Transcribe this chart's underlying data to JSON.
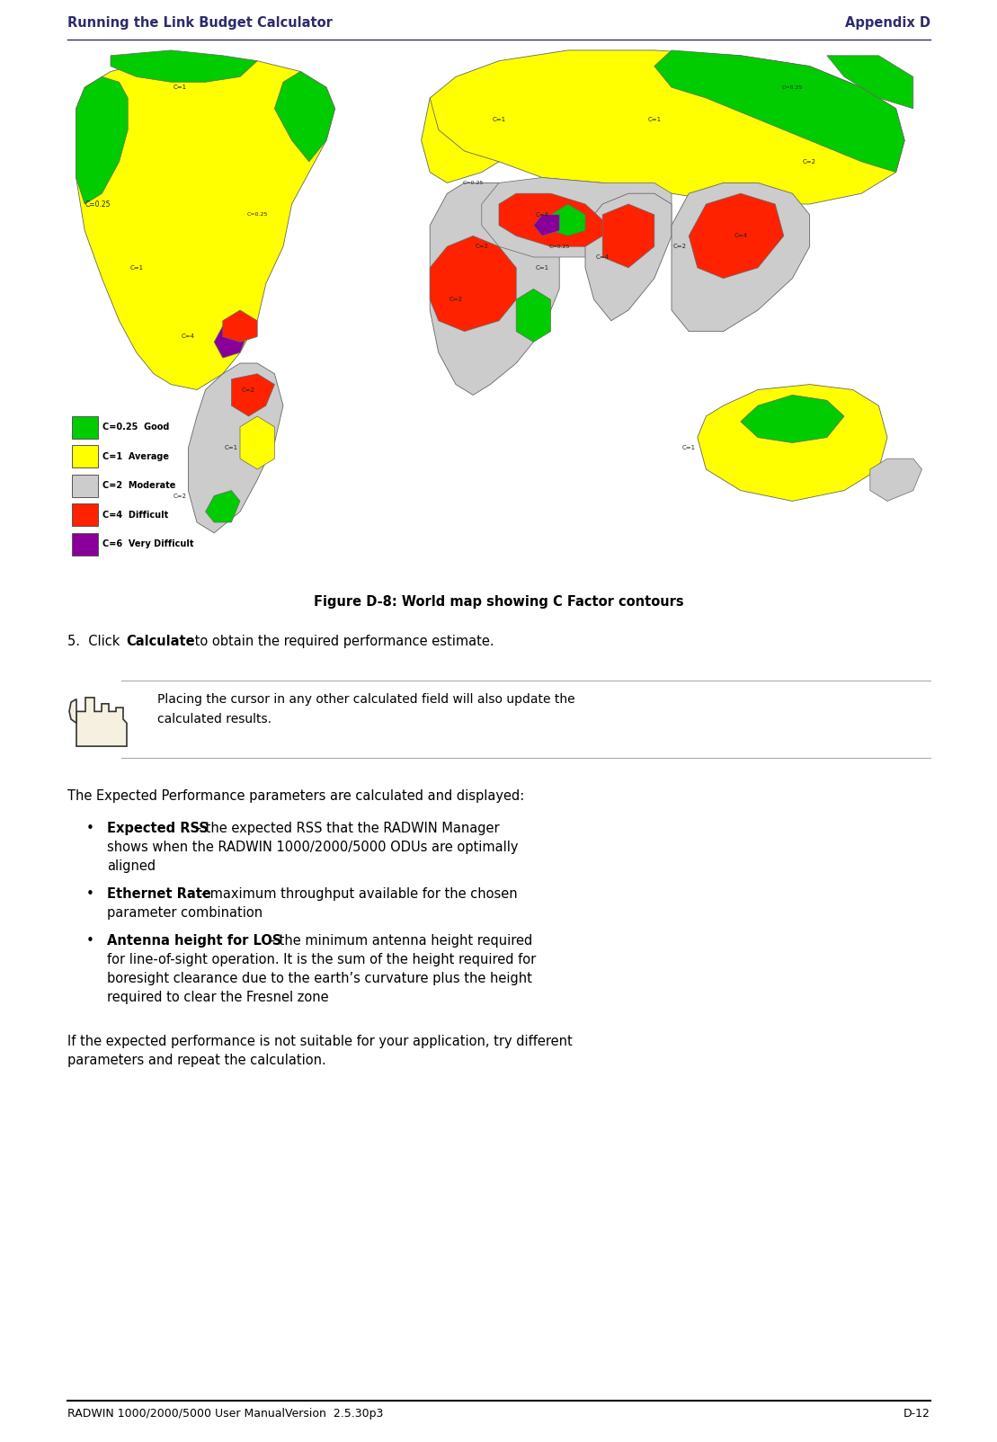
{
  "header_left": "Running the Link Budget Calculator",
  "header_right": "Appendix D",
  "header_color": "#2d2b6b",
  "header_fontsize": 10.5,
  "figure_caption": "Figure D-8: World map showing C Factor contours",
  "step5_pre": "5.  Click ",
  "step5_bold": "Calculate",
  "step5_post": " to obtain the required performance estimate.",
  "note_text_line1": "Placing the cursor in any other calculated field will also update the",
  "note_text_line2": "calculated results.",
  "body_intro": "The Expected Performance parameters are calculated and displayed:",
  "bullet1_bold": "Expected RSS",
  "bullet1_rest": " - the expected RSS that the RADWIN Manager shows when the RADWIN 1000/2000/5000 ODUs are optimally aligned",
  "bullet2_bold": "Ethernet Rate",
  "bullet2_rest": " - maximum throughput available for the chosen parameter combination",
  "bullet3_bold": "Antenna height for LOS",
  "bullet3_rest": " – the minimum antenna height required for line-of-sight operation. It is the sum of the height required for boresight clearance due to the earth’s curvature plus the height required to clear the Fresnel zone",
  "closing_line1": "If the expected performance is not suitable for your application, try different",
  "closing_line2": "parameters and repeat the calculation.",
  "footer_left": "RADWIN 1000/2000/5000 User ManualVersion  2.5.30p3",
  "footer_right": "D-12",
  "page_bg": "#ffffff",
  "header_color_hex": "#2d2b6b",
  "text_color": "#000000",
  "note_line_color": "#aaaaaa",
  "footer_line_color": "#000000",
  "legend_items": [
    {
      "color": "#00cc00",
      "label": "C=0.25",
      "desc": "Good"
    },
    {
      "color": "#ffff00",
      "label": "C=1",
      "desc": "Average"
    },
    {
      "color": "#cccccc",
      "label": "C=2",
      "desc": "Moderate"
    },
    {
      "color": "#ff2200",
      "label": "C=4",
      "desc": "Difficult"
    },
    {
      "color": "#880099",
      "label": "C=6",
      "desc": "Very Difficult"
    }
  ],
  "map_bg": "#ffffff",
  "ocean_color": "#ffffff",
  "continent_outline": "#666666"
}
